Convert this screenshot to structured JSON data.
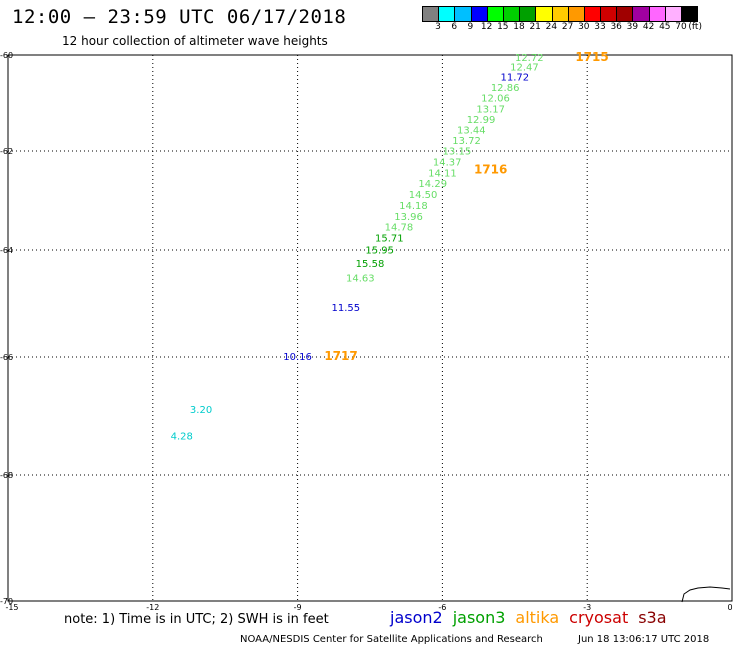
{
  "header": {
    "title": "12:00 – 23:59 UTC 06/17/2018",
    "subtitle": "12 hour collection of altimeter wave heights"
  },
  "legend": {
    "unit": "(ft)",
    "colors": [
      "#808080",
      "#00ffff",
      "#00bfff",
      "#0000ff",
      "#00ff00",
      "#00d000",
      "#00a000",
      "#ffff00",
      "#ffcc00",
      "#ff9900",
      "#ff0000",
      "#d00000",
      "#a00000",
      "#a000a0",
      "#ff66ff",
      "#ffb0ff",
      "#000000"
    ],
    "labels": [
      "3",
      "6",
      "9",
      "12",
      "15",
      "18",
      "21",
      "24",
      "27",
      "30",
      "33",
      "36",
      "39",
      "42",
      "45",
      "70"
    ]
  },
  "axes": {
    "x_ticks": [
      "-15",
      "-12",
      "-9",
      "-6",
      "-3",
      "0"
    ],
    "y_ticks": [
      "-60",
      "-62",
      "-64",
      "-66",
      "-68",
      "-70"
    ]
  },
  "observations": [
    {
      "text": "12.72",
      "color": "#66dd66",
      "lon": -4.2,
      "lat": -60.04
    },
    {
      "text": "12.47",
      "color": "#66dd66",
      "lon": -4.3,
      "lat": -60.24
    },
    {
      "text": "11.72",
      "color": "#0000cc",
      "lon": -4.5,
      "lat": -60.45
    },
    {
      "text": "12.86",
      "color": "#66dd66",
      "lon": -4.7,
      "lat": -60.67
    },
    {
      "text": "12.06",
      "color": "#66dd66",
      "lon": -4.9,
      "lat": -60.89
    },
    {
      "text": "13.17",
      "color": "#66dd66",
      "lon": -5.0,
      "lat": -61.11
    },
    {
      "text": "12.99",
      "color": "#66dd66",
      "lon": -5.2,
      "lat": -61.33
    },
    {
      "text": "13.44",
      "color": "#66dd66",
      "lon": -5.4,
      "lat": -61.55
    },
    {
      "text": "13.72",
      "color": "#66dd66",
      "lon": -5.5,
      "lat": -61.77
    },
    {
      "text": "13.15",
      "color": "#66dd66",
      "lon": -5.7,
      "lat": -61.99
    },
    {
      "text": "14.37",
      "color": "#66dd66",
      "lon": -5.9,
      "lat": -62.21
    },
    {
      "text": "14.11",
      "color": "#66dd66",
      "lon": -6.0,
      "lat": -62.43
    },
    {
      "text": "14.29",
      "color": "#66dd66",
      "lon": -6.2,
      "lat": -62.65
    },
    {
      "text": "14.50",
      "color": "#66dd66",
      "lon": -6.4,
      "lat": -62.87
    },
    {
      "text": "14.18",
      "color": "#66dd66",
      "lon": -6.6,
      "lat": -63.09
    },
    {
      "text": "13.96",
      "color": "#66dd66",
      "lon": -6.7,
      "lat": -63.31
    },
    {
      "text": "14.78",
      "color": "#66dd66",
      "lon": -6.9,
      "lat": -63.53
    },
    {
      "text": "15.71",
      "color": "#00a000",
      "lon": -7.1,
      "lat": -63.75
    },
    {
      "text": "15.95",
      "color": "#00a000",
      "lon": -7.3,
      "lat": -63.99
    },
    {
      "text": "15.58",
      "color": "#00a000",
      "lon": -7.5,
      "lat": -64.24
    },
    {
      "text": "14.63",
      "color": "#66dd66",
      "lon": -7.7,
      "lat": -64.51
    },
    {
      "text": "11.55",
      "color": "#0000cc",
      "lon": -8.0,
      "lat": -65.07
    },
    {
      "text": "10.16",
      "color": "#0000cc",
      "lon": -9.0,
      "lat": -65.98
    },
    {
      "text": "3.20",
      "color": "#00cccc",
      "lon": -11.0,
      "lat": -66.88
    },
    {
      "text": "4.28",
      "color": "#00cccc",
      "lon": -11.4,
      "lat": -67.33
    }
  ],
  "time_markers": [
    {
      "text": "1715",
      "lon": -2.9,
      "lat": -60.04
    },
    {
      "text": "1716",
      "lon": -5.0,
      "lat": -62.37
    },
    {
      "text": "1717",
      "lon": -8.1,
      "lat": -65.98
    }
  ],
  "footer": {
    "note": "note: 1) Time is in UTC; 2) SWH is in feet",
    "satellites": [
      {
        "name": "jason2",
        "color": "#0000cc"
      },
      {
        "name": "jason3",
        "color": "#00a000"
      },
      {
        "name": "altika",
        "color": "#ff9900"
      },
      {
        "name": "cryosat",
        "color": "#cc0000"
      },
      {
        "name": "s3a",
        "color": "#880000"
      }
    ],
    "credit": "NOAA/NESDIS Center for Satellite Applications and Research",
    "timestamp": "Jun 18 13:06:17 UTC 2018"
  }
}
